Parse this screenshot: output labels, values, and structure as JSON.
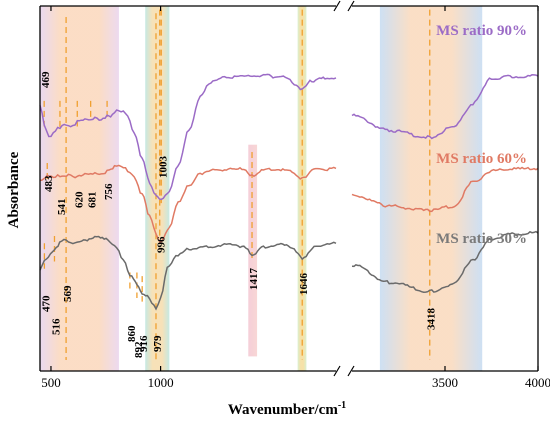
{
  "chart_data": {
    "type": "line",
    "xlabel": "Wavenumber/cm",
    "xlabel_sup": "-1",
    "ylabel": "Absorbance",
    "x_axis_break": [
      1800,
      3000
    ],
    "xlim_left": [
      450,
      1800
    ],
    "xlim_right": [
      3000,
      4000
    ],
    "x_tick_labels": [
      "500",
      "1000",
      "3500",
      "4000"
    ],
    "x_ticks": [
      500,
      1000,
      3500,
      4000
    ],
    "y_ticks_shown": false,
    "grid": false,
    "legend": "labels beside each curve, right panel",
    "shaded_bands": [
      {
        "from": 450,
        "to": 810,
        "style": "orange-pink-gradient"
      },
      {
        "from": 930,
        "to": 1040,
        "style": "teal-yellow-gradient"
      },
      {
        "from": 1400,
        "to": 1440,
        "style": "pink"
      },
      {
        "from": 1625,
        "to": 1665,
        "style": "green-yellow-gradient"
      },
      {
        "from": 3150,
        "to": 3700,
        "style": "blue-orange-gradient"
      }
    ],
    "series": [
      {
        "name": "MS ratio 90%",
        "color": "#9b6bc6",
        "label_color": "#9b6bc6",
        "points": [
          [
            450,
            0.728
          ],
          [
            469,
            0.677
          ],
          [
            490,
            0.64
          ],
          [
            510,
            0.652
          ],
          [
            541,
            0.668
          ],
          [
            570,
            0.675
          ],
          [
            600,
            0.67
          ],
          [
            620,
            0.682
          ],
          [
            681,
            0.692
          ],
          [
            720,
            0.69
          ],
          [
            756,
            0.697
          ],
          [
            780,
            0.701
          ],
          [
            810,
            0.716
          ],
          [
            850,
            0.701
          ],
          [
            880,
            0.65
          ],
          [
            916,
            0.581
          ],
          [
            950,
            0.515
          ],
          [
            979,
            0.483
          ],
          [
            1003,
            0.467
          ],
          [
            1040,
            0.491
          ],
          [
            1080,
            0.563
          ],
          [
            1130,
            0.662
          ],
          [
            1180,
            0.751
          ],
          [
            1230,
            0.791
          ],
          [
            1300,
            0.806
          ],
          [
            1400,
            0.808
          ],
          [
            1470,
            0.81
          ],
          [
            1530,
            0.806
          ],
          [
            1580,
            0.803
          ],
          [
            1620,
            0.781
          ],
          [
            1646,
            0.772
          ],
          [
            1690,
            0.795
          ],
          [
            1750,
            0.803
          ],
          [
            1800,
            0.803
          ],
          [
            3000,
            0.7
          ],
          [
            3200,
            0.659
          ],
          [
            3418,
            0.64
          ],
          [
            3550,
            0.669
          ],
          [
            3650,
            0.733
          ],
          [
            3750,
            0.801
          ],
          [
            3850,
            0.806
          ],
          [
            4000,
            0.808
          ]
        ],
        "peak_labels": [
          "469",
          "1003"
        ]
      },
      {
        "name": "MS ratio 60%",
        "color": "#e07a64",
        "label_color": "#e07a64",
        "points": [
          [
            450,
            0.522
          ],
          [
            483,
            0.534
          ],
          [
            510,
            0.532
          ],
          [
            541,
            0.534
          ],
          [
            580,
            0.536
          ],
          [
            620,
            0.532
          ],
          [
            681,
            0.541
          ],
          [
            720,
            0.539
          ],
          [
            756,
            0.546
          ],
          [
            790,
            0.56
          ],
          [
            830,
            0.56
          ],
          [
            880,
            0.532
          ],
          [
            916,
            0.483
          ],
          [
            950,
            0.424
          ],
          [
            979,
            0.378
          ],
          [
            996,
            0.354
          ],
          [
            1040,
            0.39
          ],
          [
            1080,
            0.46
          ],
          [
            1130,
            0.508
          ],
          [
            1180,
            0.541
          ],
          [
            1230,
            0.55
          ],
          [
            1300,
            0.552
          ],
          [
            1380,
            0.553
          ],
          [
            1417,
            0.534
          ],
          [
            1460,
            0.55
          ],
          [
            1540,
            0.553
          ],
          [
            1600,
            0.545
          ],
          [
            1646,
            0.527
          ],
          [
            1690,
            0.55
          ],
          [
            1750,
            0.553
          ],
          [
            1800,
            0.555
          ],
          [
            3000,
            0.483
          ],
          [
            3200,
            0.452
          ],
          [
            3418,
            0.439
          ],
          [
            3550,
            0.452
          ],
          [
            3650,
            0.517
          ],
          [
            3750,
            0.548
          ],
          [
            3850,
            0.553
          ],
          [
            4000,
            0.555
          ]
        ],
        "peak_labels": [
          "483",
          "541",
          "620",
          "681",
          "756",
          "996"
        ]
      },
      {
        "name": "MS ratio 30%",
        "color": "#6a6a6a",
        "label_color": "#7a7a7a",
        "points": [
          [
            450,
            0.28
          ],
          [
            470,
            0.307
          ],
          [
            516,
            0.329
          ],
          [
            540,
            0.35
          ],
          [
            569,
            0.359
          ],
          [
            600,
            0.352
          ],
          [
            640,
            0.355
          ],
          [
            700,
            0.368
          ],
          [
            760,
            0.359
          ],
          [
            800,
            0.338
          ],
          [
            830,
            0.304
          ],
          [
            860,
            0.26
          ],
          [
            892,
            0.24
          ],
          [
            916,
            0.213
          ],
          [
            940,
            0.205
          ],
          [
            960,
            0.186
          ],
          [
            979,
            0.172
          ],
          [
            1000,
            0.2
          ],
          [
            1030,
            0.28
          ],
          [
            1080,
            0.317
          ],
          [
            1130,
            0.334
          ],
          [
            1200,
            0.34
          ],
          [
            1300,
            0.345
          ],
          [
            1380,
            0.342
          ],
          [
            1417,
            0.317
          ],
          [
            1460,
            0.338
          ],
          [
            1540,
            0.347
          ],
          [
            1600,
            0.34
          ],
          [
            1646,
            0.31
          ],
          [
            1700,
            0.338
          ],
          [
            1750,
            0.345
          ],
          [
            1800,
            0.35
          ],
          [
            3000,
            0.291
          ],
          [
            3200,
            0.243
          ],
          [
            3418,
            0.218
          ],
          [
            3550,
            0.238
          ],
          [
            3650,
            0.306
          ],
          [
            3750,
            0.361
          ],
          [
            3850,
            0.375
          ],
          [
            4000,
            0.378
          ]
        ],
        "peak_labels": [
          "470",
          "516",
          "569",
          "860",
          "892",
          "916",
          "979",
          "1417",
          "1646",
          "3418"
        ]
      }
    ],
    "peak_markers": [
      {
        "x": 469,
        "label": "469"
      },
      {
        "x": 483,
        "label": "483"
      },
      {
        "x": 541,
        "label": "541"
      },
      {
        "x": 620,
        "label": "620"
      },
      {
        "x": 681,
        "label": "681"
      },
      {
        "x": 756,
        "label": "756"
      },
      {
        "x": 470,
        "label": "470"
      },
      {
        "x": 516,
        "label": "516"
      },
      {
        "x": 569,
        "label": "569"
      },
      {
        "x": 860,
        "label": "860"
      },
      {
        "x": 892,
        "label": "892"
      },
      {
        "x": 916,
        "label": "916"
      },
      {
        "x": 979,
        "label": "979"
      },
      {
        "x": 996,
        "label": "996"
      },
      {
        "x": 1003,
        "label": "1003"
      },
      {
        "x": 1417,
        "label": "1417"
      },
      {
        "x": 1646,
        "label": "1646"
      },
      {
        "x": 3418,
        "label": "3418"
      }
    ]
  }
}
